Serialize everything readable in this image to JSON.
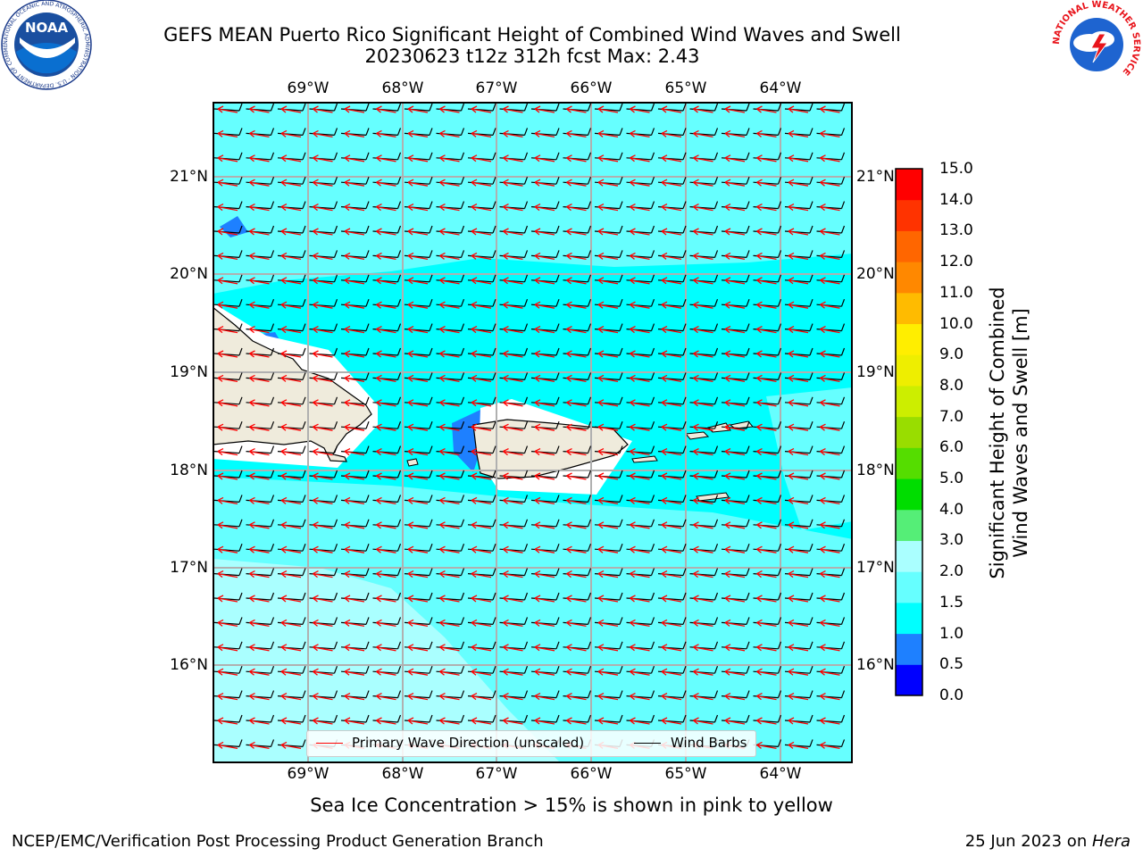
{
  "title": {
    "line1": "GEFS MEAN Puerto Rico Significant Height of Combined Wind Waves and Swell",
    "line2": "20230623 t12z 312h fcst   Max: 2.43"
  },
  "map": {
    "lon_labels": [
      "69°W",
      "68°W",
      "67°W",
      "66°W",
      "65°W",
      "64°W"
    ],
    "lat_labels": [
      "21°N",
      "20°N",
      "19°N",
      "18°N",
      "17°N",
      "16°N"
    ],
    "ocean_color": "#00ffff",
    "land_color": "#efebdc",
    "low_wave_color": "#1e90ff",
    "moderate_wave_color": "#66ffff",
    "higher_wave_color": "#99ffff"
  },
  "legend": {
    "wave_direction": "Primary Wave Direction (unscaled)",
    "wind_barbs": "Wind Barbs",
    "wave_direction_color": "#ff0000",
    "wind_barbs_color": "#000000"
  },
  "colorbar": {
    "label_line1": "Significant Height of Combined",
    "label_line2": "Wind Waves and Swell [m]",
    "ticks": [
      "0.0",
      "0.5",
      "1.0",
      "1.5",
      "2.0",
      "3.0",
      "4.0",
      "5.0",
      "6.0",
      "7.0",
      "8.0",
      "9.0",
      "10.0",
      "11.0",
      "12.0",
      "13.0",
      "14.0",
      "15.0"
    ],
    "colors": [
      "#0000ff",
      "#1e80ff",
      "#00ffff",
      "#66ffff",
      "#aaffff",
      "#55ee77",
      "#00dd00",
      "#55dd00",
      "#99dd00",
      "#ccee00",
      "#eeee00",
      "#ffee00",
      "#ffbb00",
      "#ff8800",
      "#ff6600",
      "#ff3300",
      "#ff0000"
    ]
  },
  "ice_note": "Sea Ice Concentration > 15% is shown in pink to yellow",
  "footer": {
    "left": "NCEP/EMC/Verification Post Processing Product Generation Branch",
    "date": "25 Jun 2023 on ",
    "machine": "Hera"
  },
  "logos": {
    "noaa_text": "NOAA",
    "noaa_ring": "NATIONAL OCEANIC AND ATMOSPHERIC ADMINISTRATION · U.S. DEPARTMENT OF COMMERCE",
    "nws_ring": "NATIONAL WEATHER SERVICE"
  }
}
